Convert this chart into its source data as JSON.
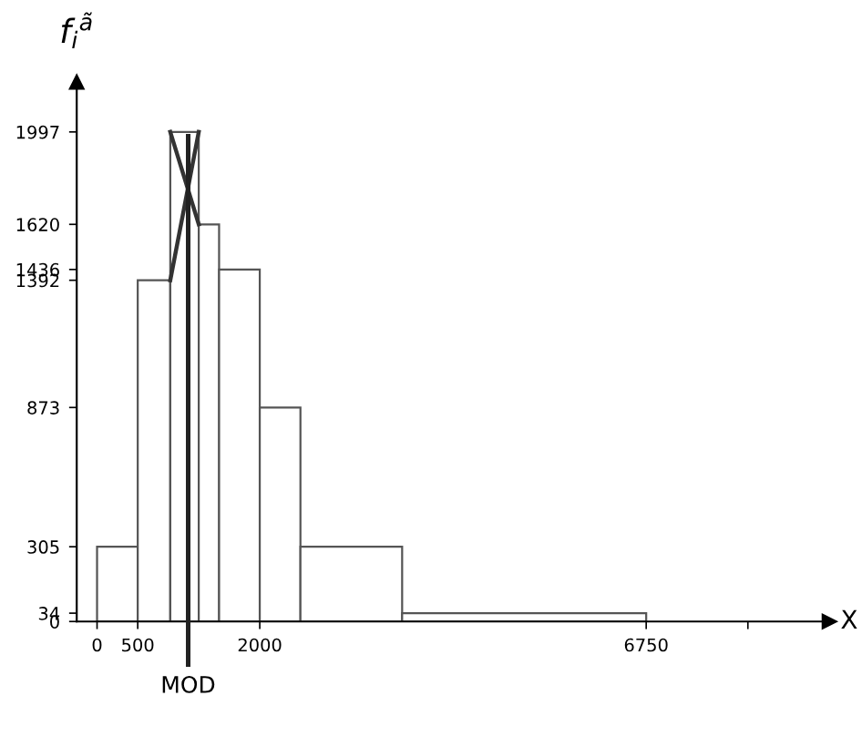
{
  "chart_data": {
    "type": "histogram",
    "xlabel": "X",
    "ylabel": "f$_{i}$$^{ã}$",
    "bins": [
      0,
      500,
      900,
      1250,
      1500,
      2000,
      2500,
      3750,
      6750
    ],
    "values": [
      305,
      1392,
      1997,
      1620,
      1436,
      873,
      305,
      34
    ],
    "color": "#555555",
    "ref_lines": [
      {
        "axis": "x",
        "value": 1120,
        "label": "MOD",
        "color": "#222222"
      }
    ],
    "xlim": [
      -250,
      9000
    ],
    "ylim": [
      0,
      2200
    ],
    "xticks": [
      0,
      500,
      2000,
      6750,
      {
        "value": 8000,
        "label": null
      }
    ],
    "yticks": [
      0,
      34,
      305,
      873,
      1392,
      1436,
      1620,
      1997
    ],
    "grid": false,
    "legend": false
  }
}
